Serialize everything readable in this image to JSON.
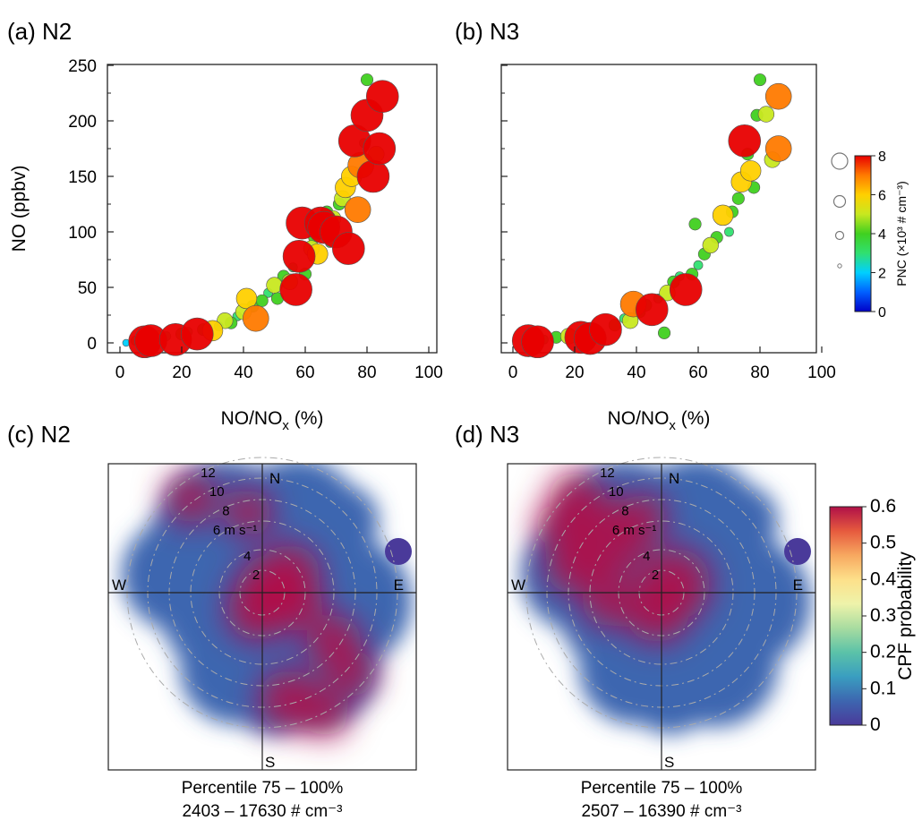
{
  "chart_data": [
    {
      "panel": "(a) N2",
      "type": "scatter",
      "xlabel": "NO/NO",
      "xlabel_sub": "x",
      "xlabel_unit": " (%)",
      "ylabel": "NO (ppbv)",
      "xlim": [
        0,
        100
      ],
      "ylim": [
        0,
        250
      ],
      "xticks": [
        "0",
        "20",
        "40",
        "60",
        "80",
        "100"
      ],
      "yticks": [
        "0",
        "50",
        "100",
        "150",
        "200",
        "250"
      ],
      "color_variable": "PNC",
      "points": [
        {
          "x": 2,
          "y": 0,
          "c": 2
        },
        {
          "x": 5,
          "y": 2,
          "c": 3
        },
        {
          "x": 8,
          "y": 1,
          "c": 8
        },
        {
          "x": 10,
          "y": 2,
          "c": 8
        },
        {
          "x": 12,
          "y": 4,
          "c": 5
        },
        {
          "x": 15,
          "y": 6,
          "c": 3
        },
        {
          "x": 18,
          "y": 3,
          "c": 8
        },
        {
          "x": 20,
          "y": 8,
          "c": 4
        },
        {
          "x": 22,
          "y": 10,
          "c": 3
        },
        {
          "x": 25,
          "y": 8,
          "c": 8
        },
        {
          "x": 27,
          "y": 12,
          "c": 4
        },
        {
          "x": 30,
          "y": 11,
          "c": 6
        },
        {
          "x": 32,
          "y": 15,
          "c": 3
        },
        {
          "x": 34,
          "y": 20,
          "c": 5
        },
        {
          "x": 36,
          "y": 18,
          "c": 4
        },
        {
          "x": 38,
          "y": 24,
          "c": 3
        },
        {
          "x": 40,
          "y": 28,
          "c": 5
        },
        {
          "x": 41,
          "y": 40,
          "c": 6
        },
        {
          "x": 43,
          "y": 33,
          "c": 4
        },
        {
          "x": 44,
          "y": 22,
          "c": 7
        },
        {
          "x": 46,
          "y": 38,
          "c": 4
        },
        {
          "x": 48,
          "y": 45,
          "c": 3
        },
        {
          "x": 50,
          "y": 52,
          "c": 5
        },
        {
          "x": 51,
          "y": 40,
          "c": 4
        },
        {
          "x": 53,
          "y": 60,
          "c": 4
        },
        {
          "x": 55,
          "y": 55,
          "c": 5
        },
        {
          "x": 56,
          "y": 68,
          "c": 3
        },
        {
          "x": 57,
          "y": 48,
          "c": 8
        },
        {
          "x": 58,
          "y": 78,
          "c": 8
        },
        {
          "x": 59,
          "y": 108,
          "c": 8
        },
        {
          "x": 60,
          "y": 62,
          "c": 4
        },
        {
          "x": 62,
          "y": 85,
          "c": 5
        },
        {
          "x": 63,
          "y": 95,
          "c": 4
        },
        {
          "x": 64,
          "y": 80,
          "c": 6
        },
        {
          "x": 65,
          "y": 108,
          "c": 8
        },
        {
          "x": 66,
          "y": 104,
          "c": 8
        },
        {
          "x": 67,
          "y": 118,
          "c": 4
        },
        {
          "x": 68,
          "y": 90,
          "c": 3
        },
        {
          "x": 69,
          "y": 112,
          "c": 5
        },
        {
          "x": 70,
          "y": 100,
          "c": 8
        },
        {
          "x": 71,
          "y": 125,
          "c": 4
        },
        {
          "x": 72,
          "y": 130,
          "c": 5
        },
        {
          "x": 73,
          "y": 140,
          "c": 6
        },
        {
          "x": 74,
          "y": 85,
          "c": 8
        },
        {
          "x": 75,
          "y": 150,
          "c": 6
        },
        {
          "x": 76,
          "y": 182,
          "c": 8
        },
        {
          "x": 77,
          "y": 120,
          "c": 7
        },
        {
          "x": 78,
          "y": 160,
          "c": 7
        },
        {
          "x": 79,
          "y": 180,
          "c": 3
        },
        {
          "x": 80,
          "y": 205,
          "c": 8
        },
        {
          "x": 80,
          "y": 237,
          "c": 4
        },
        {
          "x": 82,
          "y": 150,
          "c": 8
        },
        {
          "x": 84,
          "y": 175,
          "c": 8
        },
        {
          "x": 85,
          "y": 222,
          "c": 8
        },
        {
          "x": 83,
          "y": 170,
          "c": 5
        }
      ]
    },
    {
      "panel": "(b) N3",
      "type": "scatter",
      "xlabel": "NO/NO",
      "xlabel_sub": "x",
      "xlabel_unit": " (%)",
      "xlim": [
        0,
        100
      ],
      "ylim": [
        0,
        250
      ],
      "xticks": [
        "0",
        "20",
        "40",
        "60",
        "80",
        "100"
      ],
      "color_variable": "PNC",
      "points": [
        {
          "x": 5,
          "y": 2,
          "c": 8
        },
        {
          "x": 8,
          "y": 1,
          "c": 8
        },
        {
          "x": 10,
          "y": 3,
          "c": 3
        },
        {
          "x": 14,
          "y": 5,
          "c": 4
        },
        {
          "x": 18,
          "y": 6,
          "c": 5
        },
        {
          "x": 22,
          "y": 5,
          "c": 8
        },
        {
          "x": 25,
          "y": 4,
          "c": 8
        },
        {
          "x": 28,
          "y": 8,
          "c": 3
        },
        {
          "x": 30,
          "y": 12,
          "c": 8
        },
        {
          "x": 33,
          "y": 16,
          "c": 4
        },
        {
          "x": 36,
          "y": 22,
          "c": 3
        },
        {
          "x": 38,
          "y": 20,
          "c": 5
        },
        {
          "x": 39,
          "y": 35,
          "c": 7
        },
        {
          "x": 41,
          "y": 28,
          "c": 4
        },
        {
          "x": 43,
          "y": 34,
          "c": 4
        },
        {
          "x": 45,
          "y": 30,
          "c": 8
        },
        {
          "x": 47,
          "y": 40,
          "c": 3
        },
        {
          "x": 49,
          "y": 9,
          "c": 4
        },
        {
          "x": 50,
          "y": 45,
          "c": 5
        },
        {
          "x": 52,
          "y": 55,
          "c": 4
        },
        {
          "x": 54,
          "y": 60,
          "c": 3
        },
        {
          "x": 56,
          "y": 48,
          "c": 8
        },
        {
          "x": 58,
          "y": 62,
          "c": 4
        },
        {
          "x": 59,
          "y": 107,
          "c": 4
        },
        {
          "x": 60,
          "y": 70,
          "c": 3
        },
        {
          "x": 62,
          "y": 80,
          "c": 4
        },
        {
          "x": 64,
          "y": 88,
          "c": 5
        },
        {
          "x": 66,
          "y": 95,
          "c": 4
        },
        {
          "x": 68,
          "y": 115,
          "c": 6
        },
        {
          "x": 70,
          "y": 100,
          "c": 3
        },
        {
          "x": 71,
          "y": 118,
          "c": 4
        },
        {
          "x": 73,
          "y": 130,
          "c": 4
        },
        {
          "x": 74,
          "y": 145,
          "c": 6
        },
        {
          "x": 75,
          "y": 182,
          "c": 8
        },
        {
          "x": 76,
          "y": 170,
          "c": 4
        },
        {
          "x": 77,
          "y": 155,
          "c": 6
        },
        {
          "x": 78,
          "y": 140,
          "c": 4
        },
        {
          "x": 79,
          "y": 205,
          "c": 4
        },
        {
          "x": 80,
          "y": 237,
          "c": 4
        },
        {
          "x": 82,
          "y": 206,
          "c": 5
        },
        {
          "x": 84,
          "y": 165,
          "c": 5
        },
        {
          "x": 86,
          "y": 222,
          "c": 7
        },
        {
          "x": 86,
          "y": 175,
          "c": 7
        }
      ]
    },
    {
      "panel": "(c) N2",
      "type": "polar_heatmap",
      "compass": [
        "N",
        "E",
        "S",
        "W"
      ],
      "rings": [
        "2",
        "4",
        "6 m s⁻¹",
        "8",
        "10",
        "12"
      ],
      "caption_line1": "Percentile 75 – 100%",
      "caption_line2": "2403 – 17630 # cm⁻³"
    },
    {
      "panel": "(d) N3",
      "type": "polar_heatmap",
      "compass": [
        "N",
        "E",
        "S",
        "W"
      ],
      "rings": [
        "2",
        "4",
        "6 m s⁻¹",
        "8",
        "10",
        "12"
      ],
      "caption_line1": "Percentile 75 – 100%",
      "caption_line2": "2507 – 16390 # cm⁻³"
    }
  ],
  "colorbar_pnc": {
    "label": "PNC (×10³ # cm⁻³)",
    "ticks": [
      "0",
      "2",
      "4",
      "6",
      "8"
    ],
    "range": [
      0,
      8
    ]
  },
  "colorbar_cpf": {
    "label": "CPF probability",
    "ticks": [
      "0",
      "0.1",
      "0.2",
      "0.3",
      "0.4",
      "0.5",
      "0.6"
    ],
    "range": [
      0,
      0.6
    ]
  },
  "colors": {
    "jet": [
      "#0000c8",
      "#0060ff",
      "#00d0ff",
      "#30e070",
      "#40d020",
      "#c8e820",
      "#ffd000",
      "#ff7a00",
      "#e80000"
    ],
    "spectral": [
      "#4a3a9a",
      "#3d66b0",
      "#3a9ec0",
      "#5bc2a8",
      "#a8dca0",
      "#eef3aa",
      "#fde08a",
      "#f7a860",
      "#e65a3e",
      "#b01048"
    ]
  }
}
